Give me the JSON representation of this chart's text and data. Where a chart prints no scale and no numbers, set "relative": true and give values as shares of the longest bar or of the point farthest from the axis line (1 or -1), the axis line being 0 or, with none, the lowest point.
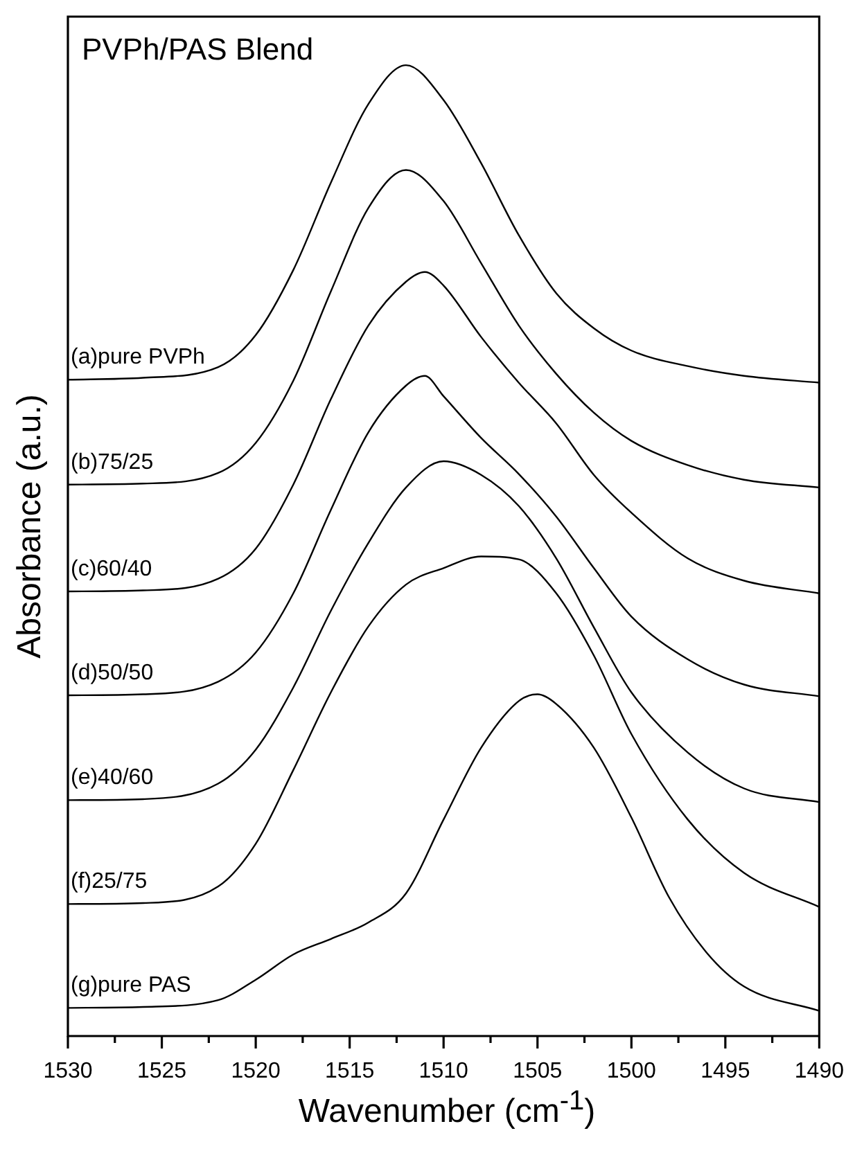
{
  "chart_data": {
    "type": "line",
    "title": "PVPh/PAS Blend",
    "xlabel": "Wavenumber (cm$^{-1}$)",
    "ylabel": "Absorbance (a.u.)",
    "relative": true,
    "xlim": [
      1530,
      1490
    ],
    "xticks": [
      1530,
      {
        "value": 1527.5,
        "label": null
      },
      1525,
      {
        "value": 1522.5,
        "label": null
      },
      1520,
      {
        "value": 1517.5,
        "label": null
      },
      1515,
      {
        "value": 1512.5,
        "label": null
      },
      1510,
      {
        "value": 1507.5,
        "label": null
      },
      1505,
      {
        "value": 1502.5,
        "label": null
      },
      1500,
      {
        "value": 1497.5,
        "label": null
      },
      1495,
      {
        "value": 1492.5,
        "label": null
      },
      1490
    ],
    "series": [
      {
        "name": "(a)pure PVPh",
        "color": "#000000",
        "x": [
          1530,
          1526,
          1522,
          1520,
          1518,
          1516,
          1514,
          1512,
          1510,
          1508,
          1506,
          1504,
          1502,
          1500,
          1497,
          1494,
          1490
        ],
        "values": [
          0.676,
          0.678,
          0.689,
          0.722,
          0.789,
          0.879,
          0.96,
          1.0,
          0.964,
          0.899,
          0.825,
          0.765,
          0.729,
          0.706,
          0.69,
          0.68,
          0.673
        ]
      },
      {
        "name": "(b)75/25",
        "color": "#000000",
        "x": [
          1530,
          1526,
          1522,
          1520,
          1518,
          1516,
          1514,
          1512,
          1510,
          1508,
          1506,
          1504,
          1502,
          1500,
          1497,
          1494,
          1490
        ],
        "values": [
          0.568,
          0.569,
          0.58,
          0.611,
          0.675,
          0.767,
          0.853,
          0.892,
          0.86,
          0.796,
          0.732,
          0.682,
          0.642,
          0.613,
          0.588,
          0.573,
          0.565
        ]
      },
      {
        "name": "(c)60/40",
        "color": "#000000",
        "x": [
          1530,
          1526,
          1522,
          1520,
          1518,
          1516,
          1514,
          1512,
          1511,
          1510,
          1508,
          1506,
          1504,
          1502,
          1500,
          1497,
          1494,
          1490
        ],
        "values": [
          0.458,
          0.459,
          0.471,
          0.502,
          0.568,
          0.656,
          0.732,
          0.777,
          0.787,
          0.773,
          0.72,
          0.673,
          0.631,
          0.578,
          0.539,
          0.492,
          0.469,
          0.456
        ]
      },
      {
        "name": "(d)50/50",
        "color": "#000000",
        "x": [
          1530,
          1526,
          1522,
          1520,
          1518,
          1516,
          1514,
          1512,
          1511,
          1510,
          1508,
          1506,
          1504,
          1502,
          1500,
          1497,
          1494,
          1490
        ],
        "values": [
          0.351,
          0.352,
          0.365,
          0.395,
          0.456,
          0.542,
          0.622,
          0.67,
          0.68,
          0.659,
          0.616,
          0.579,
          0.535,
          0.482,
          0.432,
          0.388,
          0.362,
          0.35
        ]
      },
      {
        "name": "(e)40/60",
        "color": "#000000",
        "x": [
          1530,
          1526,
          1522,
          1520,
          1518,
          1516,
          1514,
          1512,
          1510,
          1508,
          1506,
          1504,
          1502,
          1500,
          1497,
          1494,
          1490
        ],
        "values": [
          0.243,
          0.244,
          0.26,
          0.295,
          0.359,
          0.438,
          0.508,
          0.565,
          0.592,
          0.578,
          0.546,
          0.492,
          0.421,
          0.354,
          0.292,
          0.255,
          0.241
        ]
      },
      {
        "name": "(f)25/75",
        "color": "#000000",
        "x": [
          1530,
          1526,
          1522,
          1520,
          1518,
          1516,
          1514,
          1512,
          1510,
          1508,
          1506,
          1504,
          1502,
          1500,
          1497,
          1494,
          1490
        ],
        "values": [
          0.136,
          0.137,
          0.154,
          0.198,
          0.274,
          0.354,
          0.422,
          0.465,
          0.482,
          0.494,
          0.491,
          0.456,
          0.392,
          0.311,
          0.223,
          0.168,
          0.133
        ]
      },
      {
        "name": "(g)pure PAS",
        "color": "#000000",
        "x": [
          1530,
          1526,
          1522,
          1520,
          1518,
          1516,
          1514,
          1512,
          1510,
          1508,
          1506,
          1505,
          1504,
          1502,
          1500,
          1498,
          1496,
          1494,
          1490
        ],
        "values": [
          0.029,
          0.03,
          0.037,
          0.058,
          0.084,
          0.1,
          0.117,
          0.147,
          0.223,
          0.297,
          0.345,
          0.352,
          0.342,
          0.297,
          0.225,
          0.143,
          0.086,
          0.051,
          0.026
        ]
      }
    ]
  }
}
